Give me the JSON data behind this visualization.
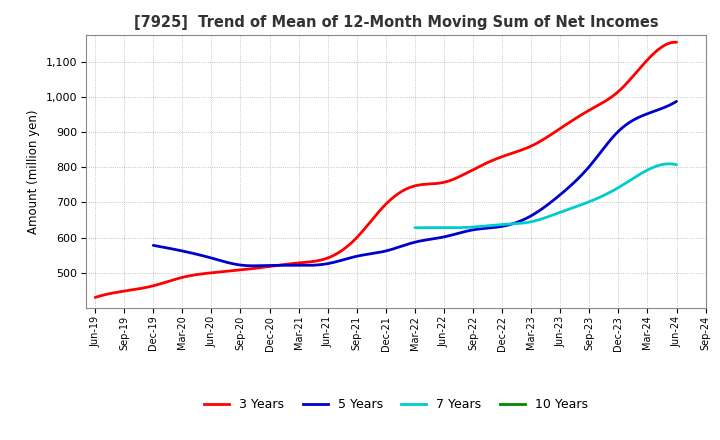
{
  "title": "[7925]  Trend of Mean of 12-Month Moving Sum of Net Incomes",
  "ylabel": "Amount (million yen)",
  "background_color": "#ffffff",
  "grid_color": "#aaaaaa",
  "ylim": [
    400,
    1175
  ],
  "yticks": [
    500,
    600,
    700,
    800,
    900,
    1000,
    1100
  ],
  "x_labels": [
    "Jun-19",
    "Sep-19",
    "Dec-19",
    "Mar-20",
    "Jun-20",
    "Sep-20",
    "Dec-20",
    "Mar-21",
    "Jun-21",
    "Sep-21",
    "Dec-21",
    "Mar-22",
    "Jun-22",
    "Sep-22",
    "Dec-22",
    "Mar-23",
    "Jun-23",
    "Sep-23",
    "Dec-23",
    "Mar-24",
    "Jun-24",
    "Sep-24"
  ],
  "series": {
    "3 Years": {
      "color": "#ff0000",
      "linewidth": 2.0,
      "data_x": [
        0,
        1,
        2,
        3,
        4,
        5,
        6,
        7,
        8,
        9,
        10,
        11,
        12,
        13,
        14,
        15,
        16,
        17,
        18,
        19,
        20
      ],
      "data_y": [
        430,
        448,
        463,
        487,
        500,
        508,
        518,
        528,
        542,
        600,
        695,
        747,
        757,
        793,
        830,
        860,
        910,
        962,
        1015,
        1105,
        1155
      ]
    },
    "5 Years": {
      "color": "#0000cc",
      "linewidth": 2.0,
      "data_x": [
        2,
        3,
        4,
        5,
        6,
        7,
        8,
        9,
        10,
        11,
        12,
        13,
        14,
        15,
        16,
        17,
        18,
        19,
        20
      ],
      "data_y": [
        578,
        562,
        542,
        522,
        521,
        521,
        526,
        547,
        562,
        587,
        602,
        622,
        632,
        662,
        722,
        802,
        902,
        952,
        987
      ]
    },
    "7 Years": {
      "color": "#00cccc",
      "linewidth": 2.0,
      "data_x": [
        11,
        12,
        13,
        14,
        15,
        16,
        17,
        18,
        19,
        20
      ],
      "data_y": [
        628,
        628,
        630,
        637,
        645,
        672,
        702,
        742,
        792,
        807
      ]
    },
    "10 Years": {
      "color": "#008800",
      "linewidth": 2.0,
      "data_x": [],
      "data_y": []
    }
  },
  "legend_labels": [
    "3 Years",
    "5 Years",
    "7 Years",
    "10 Years"
  ],
  "legend_colors": [
    "#ff0000",
    "#0000cc",
    "#00cccc",
    "#008800"
  ]
}
